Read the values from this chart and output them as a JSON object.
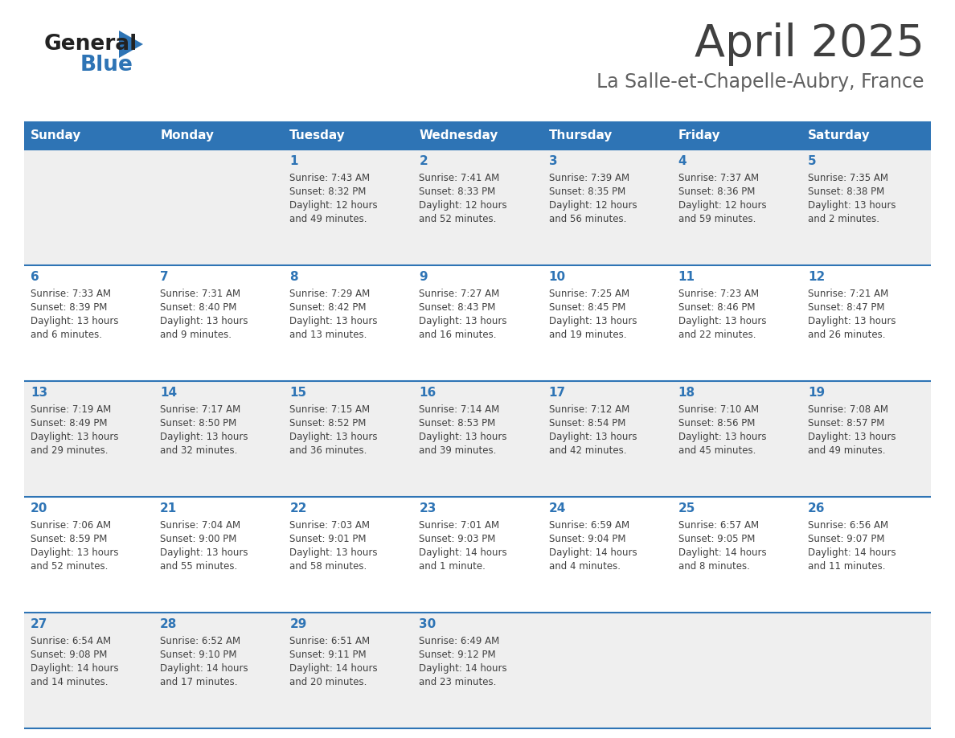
{
  "title": "April 2025",
  "subtitle": "La Salle-et-Chapelle-Aubry, France",
  "days_of_week": [
    "Sunday",
    "Monday",
    "Tuesday",
    "Wednesday",
    "Thursday",
    "Friday",
    "Saturday"
  ],
  "header_bg": "#2E74B5",
  "header_text": "#FFFFFF",
  "row_bg_odd": "#EFEFEF",
  "row_bg_even": "#FFFFFF",
  "separator_color": "#2E74B5",
  "day_number_color": "#2E74B5",
  "cell_text_color": "#404040",
  "title_color": "#404040",
  "subtitle_color": "#606060",
  "weeks": [
    [
      {
        "day": "",
        "sunrise": "",
        "sunset": "",
        "daylight": ""
      },
      {
        "day": "",
        "sunrise": "",
        "sunset": "",
        "daylight": ""
      },
      {
        "day": "1",
        "sunrise": "Sunrise: 7:43 AM",
        "sunset": "Sunset: 8:32 PM",
        "daylight": "Daylight: 12 hours\nand 49 minutes."
      },
      {
        "day": "2",
        "sunrise": "Sunrise: 7:41 AM",
        "sunset": "Sunset: 8:33 PM",
        "daylight": "Daylight: 12 hours\nand 52 minutes."
      },
      {
        "day": "3",
        "sunrise": "Sunrise: 7:39 AM",
        "sunset": "Sunset: 8:35 PM",
        "daylight": "Daylight: 12 hours\nand 56 minutes."
      },
      {
        "day": "4",
        "sunrise": "Sunrise: 7:37 AM",
        "sunset": "Sunset: 8:36 PM",
        "daylight": "Daylight: 12 hours\nand 59 minutes."
      },
      {
        "day": "5",
        "sunrise": "Sunrise: 7:35 AM",
        "sunset": "Sunset: 8:38 PM",
        "daylight": "Daylight: 13 hours\nand 2 minutes."
      }
    ],
    [
      {
        "day": "6",
        "sunrise": "Sunrise: 7:33 AM",
        "sunset": "Sunset: 8:39 PM",
        "daylight": "Daylight: 13 hours\nand 6 minutes."
      },
      {
        "day": "7",
        "sunrise": "Sunrise: 7:31 AM",
        "sunset": "Sunset: 8:40 PM",
        "daylight": "Daylight: 13 hours\nand 9 minutes."
      },
      {
        "day": "8",
        "sunrise": "Sunrise: 7:29 AM",
        "sunset": "Sunset: 8:42 PM",
        "daylight": "Daylight: 13 hours\nand 13 minutes."
      },
      {
        "day": "9",
        "sunrise": "Sunrise: 7:27 AM",
        "sunset": "Sunset: 8:43 PM",
        "daylight": "Daylight: 13 hours\nand 16 minutes."
      },
      {
        "day": "10",
        "sunrise": "Sunrise: 7:25 AM",
        "sunset": "Sunset: 8:45 PM",
        "daylight": "Daylight: 13 hours\nand 19 minutes."
      },
      {
        "day": "11",
        "sunrise": "Sunrise: 7:23 AM",
        "sunset": "Sunset: 8:46 PM",
        "daylight": "Daylight: 13 hours\nand 22 minutes."
      },
      {
        "day": "12",
        "sunrise": "Sunrise: 7:21 AM",
        "sunset": "Sunset: 8:47 PM",
        "daylight": "Daylight: 13 hours\nand 26 minutes."
      }
    ],
    [
      {
        "day": "13",
        "sunrise": "Sunrise: 7:19 AM",
        "sunset": "Sunset: 8:49 PM",
        "daylight": "Daylight: 13 hours\nand 29 minutes."
      },
      {
        "day": "14",
        "sunrise": "Sunrise: 7:17 AM",
        "sunset": "Sunset: 8:50 PM",
        "daylight": "Daylight: 13 hours\nand 32 minutes."
      },
      {
        "day": "15",
        "sunrise": "Sunrise: 7:15 AM",
        "sunset": "Sunset: 8:52 PM",
        "daylight": "Daylight: 13 hours\nand 36 minutes."
      },
      {
        "day": "16",
        "sunrise": "Sunrise: 7:14 AM",
        "sunset": "Sunset: 8:53 PM",
        "daylight": "Daylight: 13 hours\nand 39 minutes."
      },
      {
        "day": "17",
        "sunrise": "Sunrise: 7:12 AM",
        "sunset": "Sunset: 8:54 PM",
        "daylight": "Daylight: 13 hours\nand 42 minutes."
      },
      {
        "day": "18",
        "sunrise": "Sunrise: 7:10 AM",
        "sunset": "Sunset: 8:56 PM",
        "daylight": "Daylight: 13 hours\nand 45 minutes."
      },
      {
        "day": "19",
        "sunrise": "Sunrise: 7:08 AM",
        "sunset": "Sunset: 8:57 PM",
        "daylight": "Daylight: 13 hours\nand 49 minutes."
      }
    ],
    [
      {
        "day": "20",
        "sunrise": "Sunrise: 7:06 AM",
        "sunset": "Sunset: 8:59 PM",
        "daylight": "Daylight: 13 hours\nand 52 minutes."
      },
      {
        "day": "21",
        "sunrise": "Sunrise: 7:04 AM",
        "sunset": "Sunset: 9:00 PM",
        "daylight": "Daylight: 13 hours\nand 55 minutes."
      },
      {
        "day": "22",
        "sunrise": "Sunrise: 7:03 AM",
        "sunset": "Sunset: 9:01 PM",
        "daylight": "Daylight: 13 hours\nand 58 minutes."
      },
      {
        "day": "23",
        "sunrise": "Sunrise: 7:01 AM",
        "sunset": "Sunset: 9:03 PM",
        "daylight": "Daylight: 14 hours\nand 1 minute."
      },
      {
        "day": "24",
        "sunrise": "Sunrise: 6:59 AM",
        "sunset": "Sunset: 9:04 PM",
        "daylight": "Daylight: 14 hours\nand 4 minutes."
      },
      {
        "day": "25",
        "sunrise": "Sunrise: 6:57 AM",
        "sunset": "Sunset: 9:05 PM",
        "daylight": "Daylight: 14 hours\nand 8 minutes."
      },
      {
        "day": "26",
        "sunrise": "Sunrise: 6:56 AM",
        "sunset": "Sunset: 9:07 PM",
        "daylight": "Daylight: 14 hours\nand 11 minutes."
      }
    ],
    [
      {
        "day": "27",
        "sunrise": "Sunrise: 6:54 AM",
        "sunset": "Sunset: 9:08 PM",
        "daylight": "Daylight: 14 hours\nand 14 minutes."
      },
      {
        "day": "28",
        "sunrise": "Sunrise: 6:52 AM",
        "sunset": "Sunset: 9:10 PM",
        "daylight": "Daylight: 14 hours\nand 17 minutes."
      },
      {
        "day": "29",
        "sunrise": "Sunrise: 6:51 AM",
        "sunset": "Sunset: 9:11 PM",
        "daylight": "Daylight: 14 hours\nand 20 minutes."
      },
      {
        "day": "30",
        "sunrise": "Sunrise: 6:49 AM",
        "sunset": "Sunset: 9:12 PM",
        "daylight": "Daylight: 14 hours\nand 23 minutes."
      },
      {
        "day": "",
        "sunrise": "",
        "sunset": "",
        "daylight": ""
      },
      {
        "day": "",
        "sunrise": "",
        "sunset": "",
        "daylight": ""
      },
      {
        "day": "",
        "sunrise": "",
        "sunset": "",
        "daylight": ""
      }
    ]
  ]
}
